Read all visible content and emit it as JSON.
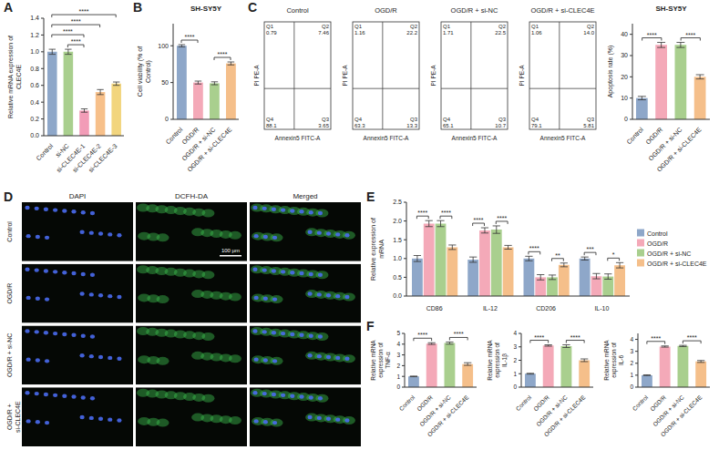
{
  "chart_data": [
    {
      "panel": "A",
      "type": "bar",
      "categories": [
        "Control",
        "si-NC",
        "si-CLEC4E-1",
        "si-CLEC4E-2",
        "si-CLEC4E-3"
      ],
      "values": [
        1.0,
        1.0,
        0.3,
        0.52,
        0.62
      ],
      "errors": [
        0.03,
        0.03,
        0.02,
        0.03,
        0.02
      ],
      "colors": [
        "#8ea7c9",
        "#a9cf8e",
        "#f29cb7",
        "#f7c08a",
        "#f2d57e"
      ],
      "y_label": "Relative mRNA expression of CLEC4E",
      "ylim": [
        0,
        1.4
      ],
      "yticks": [
        {
          "value": 0,
          "label": "0.0"
        },
        0.2,
        0.4,
        0.6,
        0.8,
        {
          "value": 1,
          "label": "1.0"
        },
        1.2,
        1.4
      ],
      "significance": [
        {
          "from": "si-NC",
          "to": "si-CLEC4E-1",
          "label": "****"
        },
        {
          "from": "Control",
          "to": "si-CLEC4E-1",
          "label": "****"
        },
        {
          "from": "Control",
          "to": "si-CLEC4E-2",
          "label": "****"
        },
        {
          "from": "Control",
          "to": "si-CLEC4E-3",
          "label": "****"
        }
      ]
    },
    {
      "panel": "B",
      "type": "bar",
      "title": "SH-SY5Y",
      "categories": [
        "Control",
        "OGD/R",
        "OGD/R + si-NC",
        "OGD/R + si-CLEC4E"
      ],
      "values": [
        100,
        50,
        49,
        76
      ],
      "errors": [
        1.5,
        2,
        2,
        2
      ],
      "colors": [
        "#8ea7c9",
        "#f4a9b8",
        "#a9cf8e",
        "#f5bf8a"
      ],
      "y_label": "Cell viability (% of Control)",
      "ylim": [
        0,
        130
      ],
      "yticks": [
        0,
        50,
        100
      ],
      "significance": [
        {
          "from": "Control",
          "to": "OGD/R",
          "label": "****"
        },
        {
          "from": "OGD/R + si-NC",
          "to": "OGD/R + si-CLEC4E",
          "label": "****"
        }
      ]
    },
    {
      "panel": "C",
      "type": "flow_cytometry",
      "x_label": "Annexin5 FITC-A",
      "y_label": "PI PE-A",
      "plots": [
        {
          "title": "Control",
          "quadrants": [
            {
              "name": "Q1",
              "value": 0.79
            },
            {
              "name": "Q2",
              "value": 7.46
            },
            {
              "name": "Q3",
              "value": 3.65
            },
            {
              "name": "Q4",
              "value": 88.1
            }
          ]
        },
        {
          "title": "OGD/R",
          "quadrants": [
            {
              "name": "Q1",
              "value": 1.16
            },
            {
              "name": "Q2",
              "value": 22.2
            },
            {
              "name": "Q3",
              "value": 13.3
            },
            {
              "name": "Q4",
              "value": 63.3
            }
          ]
        },
        {
          "title": "OGD/R + si-NC",
          "quadrants": [
            {
              "name": "Q1",
              "value": 1.71
            },
            {
              "name": "Q2",
              "value": 22.5
            },
            {
              "name": "Q3",
              "value": 10.7
            },
            {
              "name": "Q4",
              "value": 65.1
            }
          ]
        },
        {
          "title": "OGD/R + si-CLEC4E",
          "quadrants": [
            {
              "name": "Q1",
              "value": 1.06
            },
            {
              "name": "Q2",
              "value": 14,
              "label": "14.0"
            },
            {
              "name": "Q3",
              "value": 5.81
            },
            {
              "name": "Q4",
              "value": 79.1
            }
          ]
        }
      ]
    },
    {
      "panel": "C",
      "type": "bar",
      "title": "SH-SY5Y",
      "categories": [
        "Control",
        "OGD/R",
        "OGD/R + si-NC",
        "OGD/R + si-CLEC4E"
      ],
      "values": [
        10,
        35,
        35,
        20
      ],
      "errors": [
        0.8,
        1.2,
        1.2,
        1
      ],
      "colors": [
        "#8ea7c9",
        "#f4a9b8",
        "#a9cf8e",
        "#f5bf8a"
      ],
      "y_label": "Apoptosis rate (%)",
      "ylim": [
        0,
        45
      ],
      "yticks": [
        0,
        10,
        20,
        30,
        40
      ],
      "significance": [
        {
          "from": "Control",
          "to": "OGD/R",
          "label": "****"
        },
        {
          "from": "OGD/R + si-NC",
          "to": "OGD/R + si-CLEC4E",
          "label": "****"
        }
      ]
    },
    {
      "panel": "D",
      "type": "image_grid",
      "columns": [
        "DAPI",
        "DCFH-DA",
        "Merged"
      ],
      "rows": [
        "Control",
        "OGD/R",
        "OGD/R + si-NC",
        "OGD/R + si-CLEC4E"
      ],
      "scale_bar": "100 µm"
    },
    {
      "panel": "E",
      "type": "bar",
      "categories": [
        "CD86",
        "IL-12",
        "CD206",
        "IL-10"
      ],
      "series": [
        {
          "name": "Control",
          "color": "#8ea7c9",
          "values": [
            1.0,
            0.97,
            1.0,
            1.0
          ],
          "errors": [
            0.08,
            0.07,
            0.06,
            0.04
          ]
        },
        {
          "name": "OGD/R",
          "color": "#f4a9b8",
          "values": [
            1.93,
            1.75,
            0.5,
            0.53
          ],
          "errors": [
            0.08,
            0.07,
            0.07,
            0.07
          ]
        },
        {
          "name": "OGD/R + si-NC",
          "color": "#a9cf8e",
          "values": [
            1.93,
            1.77,
            0.5,
            0.52
          ],
          "errors": [
            0.08,
            0.1,
            0.06,
            0.07
          ]
        },
        {
          "name": "OGD/R + si-CLEC4E",
          "color": "#f5bf8a",
          "values": [
            1.3,
            1.3,
            0.83,
            0.82
          ],
          "errors": [
            0.06,
            0.05,
            0.05,
            0.07
          ]
        }
      ],
      "y_label": "Relative expression of mRNA",
      "ylim": [
        0,
        2.5
      ],
      "yticks": [
        {
          "value": 0,
          "label": "0.0"
        },
        0.5,
        {
          "value": 1,
          "label": "1.0"
        },
        1.5,
        {
          "value": 2,
          "label": "2.0"
        },
        2.5
      ],
      "legend": "right",
      "significance": [
        {
          "category": "CD86",
          "from": "Control",
          "to": "OGD/R",
          "label": "****"
        },
        {
          "category": "CD86",
          "from": "OGD/R + si-NC",
          "to": "OGD/R + si-CLEC4E",
          "label": "****"
        },
        {
          "category": "IL-12",
          "from": "Control",
          "to": "OGD/R",
          "label": "****"
        },
        {
          "category": "IL-12",
          "from": "OGD/R + si-NC",
          "to": "OGD/R + si-CLEC4E",
          "label": "****"
        },
        {
          "category": "CD206",
          "from": "Control",
          "to": "OGD/R",
          "label": "****"
        },
        {
          "category": "CD206",
          "from": "OGD/R + si-NC",
          "to": "OGD/R + si-CLEC4E",
          "label": "**"
        },
        {
          "category": "IL-10",
          "from": "Control",
          "to": "OGD/R",
          "label": "***"
        },
        {
          "category": "IL-10",
          "from": "OGD/R + si-NC",
          "to": "OGD/R + si-CLEC4E",
          "label": "*"
        }
      ]
    },
    {
      "panel": "F",
      "type": "bar",
      "categories": [
        "Control",
        "OGD/R",
        "OGD/R + si-NC",
        "OGD/R + si-CLEC4E"
      ],
      "values": [
        1.0,
        4.05,
        4.1,
        2.15
      ],
      "errors": [
        0.03,
        0.08,
        0.1,
        0.12
      ],
      "colors": [
        "#8ea7c9",
        "#f4a9b8",
        "#a9cf8e",
        "#f5bf8a"
      ],
      "y_label": "Relative mRNA expression of TNF-α",
      "ylim": [
        0,
        5
      ],
      "yticks": [
        0,
        1,
        2,
        3,
        4,
        5
      ],
      "significance": [
        {
          "from": "Control",
          "to": "OGD/R",
          "label": "****"
        },
        {
          "from": "OGD/R + si-NC",
          "to": "OGD/R + si-CLEC4E",
          "label": "****"
        }
      ]
    },
    {
      "panel": "F",
      "type": "bar",
      "categories": [
        "Control",
        "OGD/R",
        "OGD/R + si-NC",
        "OGD/R + si-CLEC4E"
      ],
      "values": [
        1.0,
        3.1,
        3.05,
        2.0
      ],
      "errors": [
        0.03,
        0.05,
        0.1,
        0.1
      ],
      "colors": [
        "#8ea7c9",
        "#f4a9b8",
        "#a9cf8e",
        "#f5bf8a"
      ],
      "y_label": "Relative mRNA expression of IL-1β",
      "ylim": [
        0,
        4
      ],
      "yticks": [
        0,
        1,
        2,
        3,
        4
      ],
      "significance": [
        {
          "from": "Control",
          "to": "OGD/R",
          "label": "****"
        },
        {
          "from": "OGD/R + si-NC",
          "to": "OGD/R + si-CLEC4E",
          "label": "****"
        }
      ]
    },
    {
      "panel": "F",
      "type": "bar",
      "categories": [
        "Control",
        "OGD/R",
        "OGD/R + si-NC",
        "OGD/R + si-CLEC4E"
      ],
      "values": [
        1.0,
        3.4,
        3.45,
        2.15
      ],
      "errors": [
        0.03,
        0.05,
        0.05,
        0.08
      ],
      "colors": [
        "#8ea7c9",
        "#f4a9b8",
        "#a9cf8e",
        "#f5bf8a"
      ],
      "y_label": "Relative mRNA expression of IL-6",
      "ylim": [
        0,
        4.5
      ],
      "yticks": [
        0,
        1,
        2,
        3,
        4
      ],
      "significance": [
        {
          "from": "Control",
          "to": "OGD/R",
          "label": "****"
        },
        {
          "from": "OGD/R + si-NC",
          "to": "OGD/R + si-CLEC4E",
          "label": "****"
        }
      ]
    }
  ]
}
